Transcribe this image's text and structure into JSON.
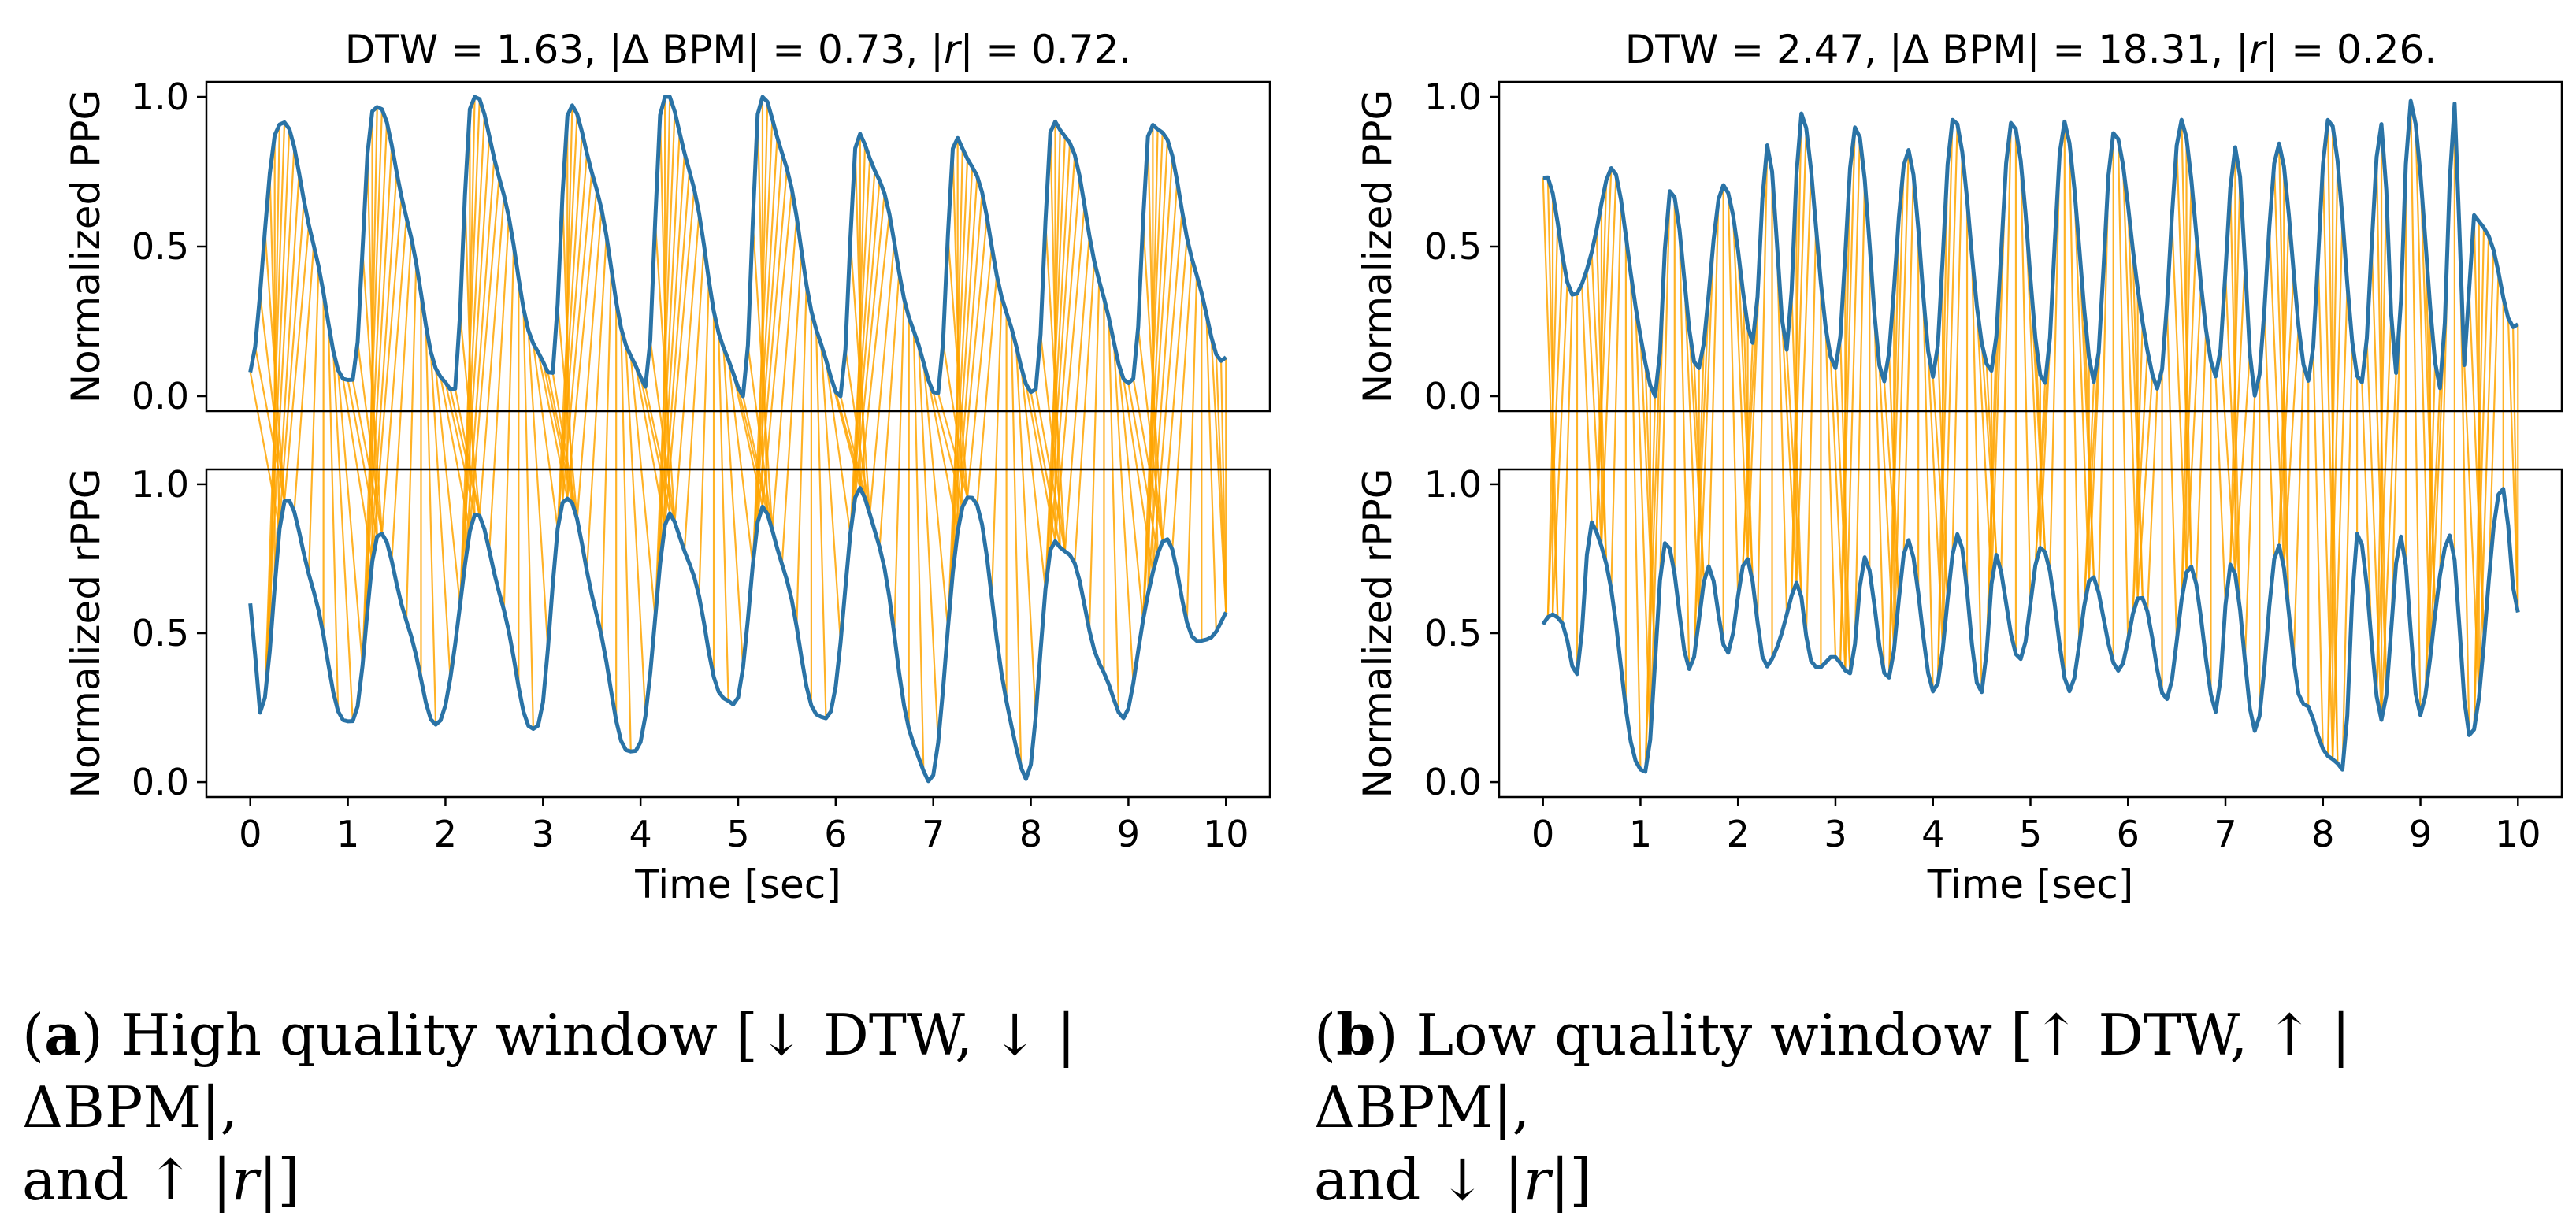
{
  "chart_data": [
    {
      "type": "line",
      "panel": "a",
      "title": "DTW = 1.63, |Δ BPM| = 0.73, |r| = 0.72.",
      "title_parts": [
        "DTW = 1.63, |Δ BPM| = 0.73, |",
        "r",
        "| = 0.72."
      ],
      "xlabel": "Time [sec]",
      "xlim": [
        -0.45,
        10.45
      ],
      "xticks": [
        0,
        1,
        2,
        3,
        4,
        5,
        6,
        7,
        8,
        9,
        10
      ],
      "period_sec": 1.0,
      "phase_sec": 0.25,
      "top": {
        "ylabel": "Normalized PPG",
        "ylim": [
          -0.05,
          1.05
        ],
        "yticks": [
          "0.0",
          "0.5",
          "1.0"
        ],
        "peaks": [
          {
            "t": 0.28,
            "v": 0.92
          },
          {
            "t": 1.25,
            "v": 0.97
          },
          {
            "t": 2.27,
            "v": 0.99
          },
          {
            "t": 3.27,
            "v": 0.95
          },
          {
            "t": 4.23,
            "v": 1.0
          },
          {
            "t": 5.23,
            "v": 0.99
          },
          {
            "t": 6.23,
            "v": 0.86
          },
          {
            "t": 7.23,
            "v": 0.86
          },
          {
            "t": 8.23,
            "v": 0.93
          },
          {
            "t": 9.23,
            "v": 0.93
          }
        ],
        "troughs": [
          {
            "t": 0.0,
            "v": 0.08
          },
          {
            "t": 1.05,
            "v": 0.03
          },
          {
            "t": 2.08,
            "v": 0.0
          },
          {
            "t": 3.08,
            "v": 0.07
          },
          {
            "t": 4.05,
            "v": 0.04
          },
          {
            "t": 5.05,
            "v": 0.02
          },
          {
            "t": 6.05,
            "v": 0.02
          },
          {
            "t": 7.05,
            "v": 0.03
          },
          {
            "t": 8.05,
            "v": 0.03
          },
          {
            "t": 9.05,
            "v": 0.05
          },
          {
            "t": 10.0,
            "v": 0.13
          }
        ]
      },
      "bottom": {
        "ylabel": "Normalized rPPG",
        "ylim": [
          -0.05,
          1.05
        ],
        "yticks": [
          "0.0",
          "0.5",
          "1.0"
        ],
        "peaks": [
          {
            "t": 0.35,
            "v": 0.93
          },
          {
            "t": 1.3,
            "v": 0.82
          },
          {
            "t": 2.3,
            "v": 0.88
          },
          {
            "t": 3.2,
            "v": 0.95
          },
          {
            "t": 4.3,
            "v": 0.88
          },
          {
            "t": 5.25,
            "v": 0.9
          },
          {
            "t": 6.25,
            "v": 0.97
          },
          {
            "t": 7.35,
            "v": 0.98
          },
          {
            "t": 8.25,
            "v": 0.82
          },
          {
            "t": 9.35,
            "v": 0.81
          }
        ],
        "troughs": [
          {
            "t": 0.0,
            "v": 0.6
          },
          {
            "t": 0.1,
            "v": 0.21
          },
          {
            "t": 1.05,
            "v": 0.18
          },
          {
            "t": 1.95,
            "v": 0.2
          },
          {
            "t": 2.95,
            "v": 0.17
          },
          {
            "t": 3.95,
            "v": 0.08
          },
          {
            "t": 4.95,
            "v": 0.24
          },
          {
            "t": 5.9,
            "v": 0.19
          },
          {
            "t": 6.95,
            "v": 0.01
          },
          {
            "t": 7.95,
            "v": 0.03
          },
          {
            "t": 8.95,
            "v": 0.24
          },
          {
            "t": 9.75,
            "v": 0.45
          },
          {
            "t": 10.0,
            "v": 0.57
          }
        ]
      }
    },
    {
      "type": "line",
      "panel": "b",
      "title": "DTW = 2.47, |Δ BPM| = 18.31, |r| = 0.26.",
      "title_parts": [
        "DTW = 2.47, |Δ BPM| = 18.31, |",
        "r",
        "| = 0.26."
      ],
      "xlabel": "Time [sec]",
      "xlim": [
        -0.45,
        10.45
      ],
      "xticks": [
        0,
        1,
        2,
        3,
        4,
        5,
        6,
        7,
        8,
        9,
        10
      ],
      "period_sec": 0.5,
      "phase_sec": 0.15,
      "top": {
        "ylabel": "Normalized PPG",
        "ylim": [
          -0.05,
          1.05
        ],
        "yticks": [
          "0.0",
          "0.5",
          "1.0"
        ],
        "peaks": [
          {
            "t": 0.0,
            "v": 0.73
          },
          {
            "t": 0.7,
            "v": 0.74
          },
          {
            "t": 1.3,
            "v": 0.68
          },
          {
            "t": 1.85,
            "v": 0.73
          },
          {
            "t": 2.3,
            "v": 0.82
          },
          {
            "t": 2.65,
            "v": 0.92
          },
          {
            "t": 3.2,
            "v": 0.91
          },
          {
            "t": 3.75,
            "v": 0.84
          },
          {
            "t": 4.2,
            "v": 0.92
          },
          {
            "t": 4.8,
            "v": 0.93
          },
          {
            "t": 5.35,
            "v": 0.93
          },
          {
            "t": 5.85,
            "v": 0.86
          },
          {
            "t": 6.55,
            "v": 0.9
          },
          {
            "t": 7.1,
            "v": 0.83
          },
          {
            "t": 7.55,
            "v": 0.83
          },
          {
            "t": 8.05,
            "v": 0.93
          },
          {
            "t": 8.6,
            "v": 0.93
          },
          {
            "t": 8.9,
            "v": 1.0
          },
          {
            "t": 9.35,
            "v": 0.98
          },
          {
            "t": 9.55,
            "v": 0.62
          }
        ],
        "troughs": [
          {
            "t": 0.35,
            "v": 0.33
          },
          {
            "t": 1.15,
            "v": 0.0
          },
          {
            "t": 1.6,
            "v": 0.1
          },
          {
            "t": 2.15,
            "v": 0.2
          },
          {
            "t": 2.5,
            "v": 0.18
          },
          {
            "t": 3.0,
            "v": 0.07
          },
          {
            "t": 3.5,
            "v": 0.07
          },
          {
            "t": 4.0,
            "v": 0.05
          },
          {
            "t": 4.6,
            "v": 0.06
          },
          {
            "t": 5.15,
            "v": 0.05
          },
          {
            "t": 5.65,
            "v": 0.05
          },
          {
            "t": 6.3,
            "v": 0.03
          },
          {
            "t": 6.9,
            "v": 0.05
          },
          {
            "t": 7.3,
            "v": 0.02
          },
          {
            "t": 7.85,
            "v": 0.03
          },
          {
            "t": 8.4,
            "v": 0.04
          },
          {
            "t": 8.75,
            "v": 0.06
          },
          {
            "t": 9.2,
            "v": 0.03
          },
          {
            "t": 9.45,
            "v": 0.08
          },
          {
            "t": 10.0,
            "v": 0.24
          }
        ]
      },
      "bottom": {
        "ylabel": "Normalized rPPG",
        "ylim": [
          -0.05,
          1.05
        ],
        "yticks": [
          "0.0",
          "0.5",
          "1.0"
        ],
        "peaks": [
          {
            "t": 0.2,
            "v": 0.55
          },
          {
            "t": 0.5,
            "v": 0.88
          },
          {
            "t": 1.25,
            "v": 0.82
          },
          {
            "t": 1.7,
            "v": 0.7
          },
          {
            "t": 2.1,
            "v": 0.75
          },
          {
            "t": 2.6,
            "v": 0.66
          },
          {
            "t": 3.3,
            "v": 0.73
          },
          {
            "t": 3.75,
            "v": 0.83
          },
          {
            "t": 4.25,
            "v": 0.81
          },
          {
            "t": 4.65,
            "v": 0.75
          },
          {
            "t": 5.1,
            "v": 0.81
          },
          {
            "t": 5.65,
            "v": 0.69
          },
          {
            "t": 6.1,
            "v": 0.63
          },
          {
            "t": 6.65,
            "v": 0.74
          },
          {
            "t": 7.05,
            "v": 0.75
          },
          {
            "t": 7.55,
            "v": 0.78
          },
          {
            "t": 8.35,
            "v": 0.85
          },
          {
            "t": 8.8,
            "v": 0.8
          },
          {
            "t": 9.3,
            "v": 0.85
          },
          {
            "t": 9.85,
            "v": 0.99
          }
        ],
        "troughs": [
          {
            "t": 0.0,
            "v": 0.53
          },
          {
            "t": 0.35,
            "v": 0.35
          },
          {
            "t": 1.05,
            "v": 0.01
          },
          {
            "t": 1.5,
            "v": 0.4
          },
          {
            "t": 1.9,
            "v": 0.45
          },
          {
            "t": 2.3,
            "v": 0.37
          },
          {
            "t": 2.75,
            "v": 0.41
          },
          {
            "t": 3.15,
            "v": 0.39
          },
          {
            "t": 3.55,
            "v": 0.35
          },
          {
            "t": 4.0,
            "v": 0.29
          },
          {
            "t": 4.5,
            "v": 0.31
          },
          {
            "t": 4.9,
            "v": 0.39
          },
          {
            "t": 5.4,
            "v": 0.33
          },
          {
            "t": 5.9,
            "v": 0.35
          },
          {
            "t": 6.4,
            "v": 0.3
          },
          {
            "t": 6.9,
            "v": 0.22
          },
          {
            "t": 7.3,
            "v": 0.19
          },
          {
            "t": 7.8,
            "v": 0.24
          },
          {
            "t": 8.2,
            "v": 0.03
          },
          {
            "t": 8.6,
            "v": 0.23
          },
          {
            "t": 9.0,
            "v": 0.24
          },
          {
            "t": 9.5,
            "v": 0.15
          },
          {
            "t": 10.0,
            "v": 0.57
          }
        ]
      }
    }
  ],
  "colors": {
    "signal": "#2a73a6",
    "warp": "#ffa500",
    "axis": "#000000",
    "background": "#ffffff"
  },
  "captions": {
    "a": {
      "label": "a",
      "line1": ") High quality window [↓ DTW, ↓ |ΔBPM|,",
      "line2_pre": "and ↑ |",
      "line2_var": "r",
      "line2_post": "|]"
    },
    "b": {
      "label": "b",
      "line1": ") Low quality window [↑ DTW, ↑ |ΔBPM|,",
      "line2_pre": "and ↓ |",
      "line2_var": "r",
      "line2_post": "|]"
    }
  }
}
